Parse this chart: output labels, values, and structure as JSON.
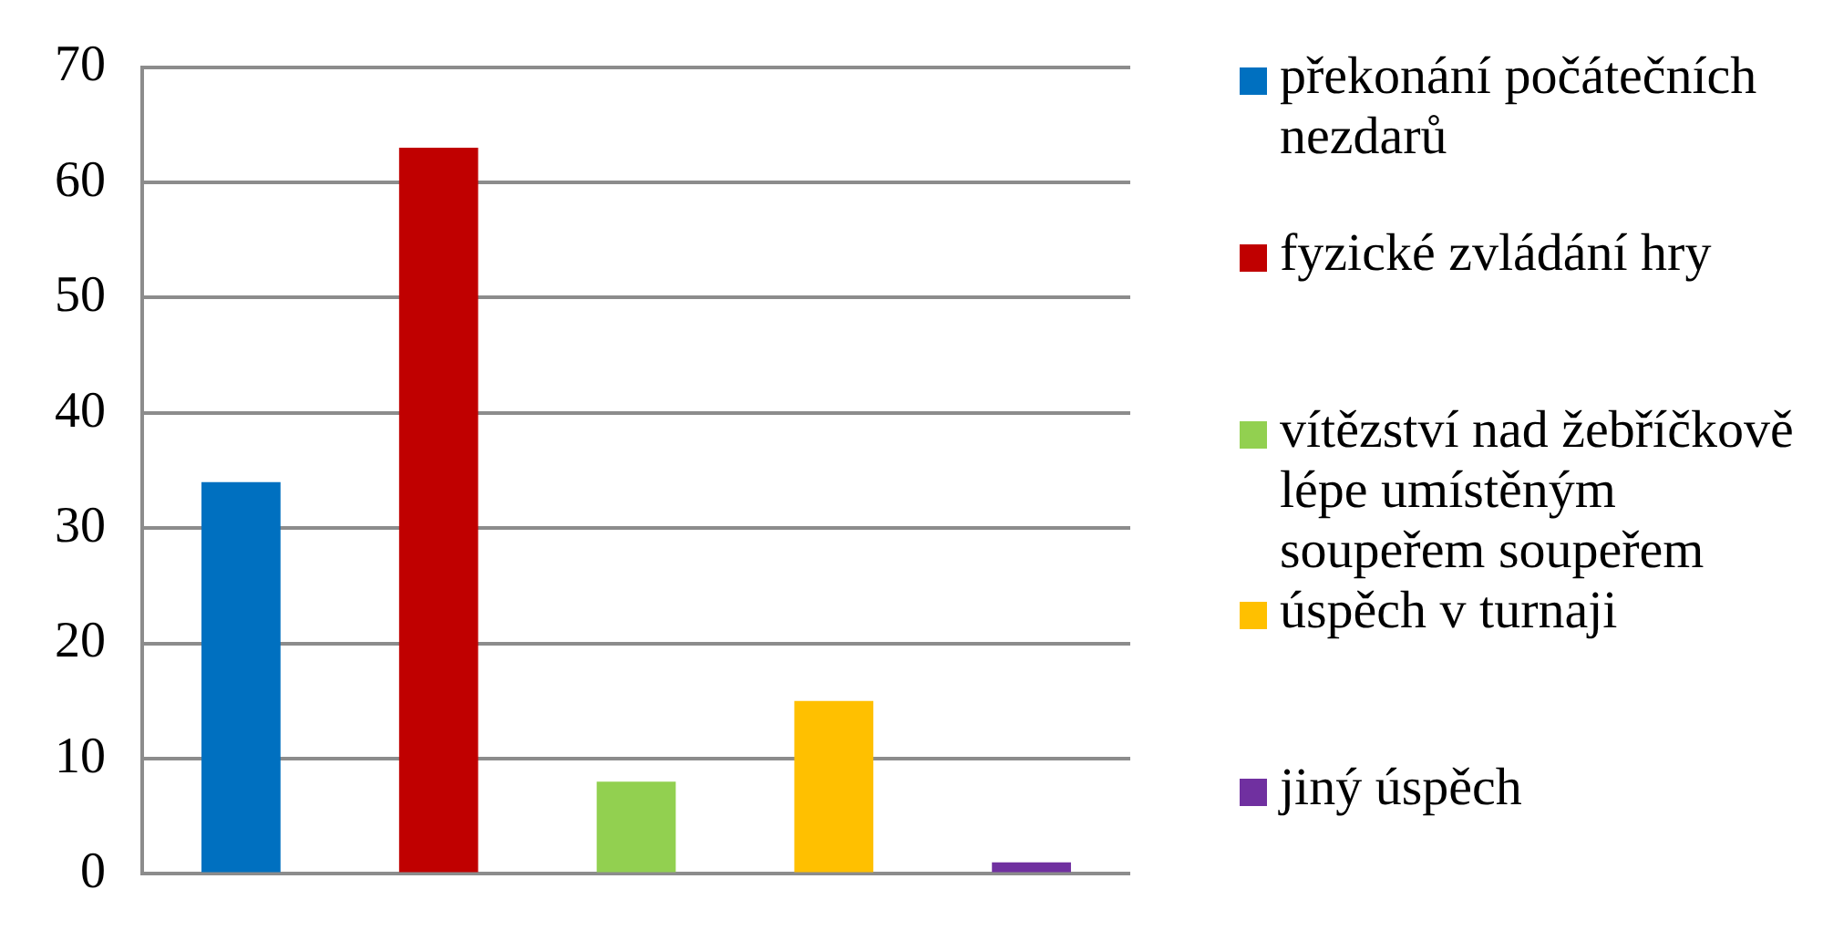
{
  "chart_data": {
    "type": "bar",
    "categories": [
      null
    ],
    "series": [
      {
        "name": "překonání počátečních nezdarů",
        "color": "#0070c0",
        "values": [
          34
        ]
      },
      {
        "name": "fyzické zvládání hry",
        "color": "#c00000",
        "values": [
          63
        ]
      },
      {
        "name": "vítězství nad žebříčkově lépe umístěným soupeřem soupeřem",
        "color": "#92d050",
        "values": [
          8
        ]
      },
      {
        "name": "úspěch v turnaji",
        "color": "#ffc000",
        "values": [
          15
        ]
      },
      {
        "name": "jiný úspěch",
        "color": "#7030a0",
        "values": [
          1
        ]
      }
    ],
    "ylim": [
      0,
      70
    ],
    "yticks": [
      0,
      10,
      20,
      30,
      40,
      50,
      60,
      70
    ],
    "grid": "y",
    "legend": "right"
  }
}
